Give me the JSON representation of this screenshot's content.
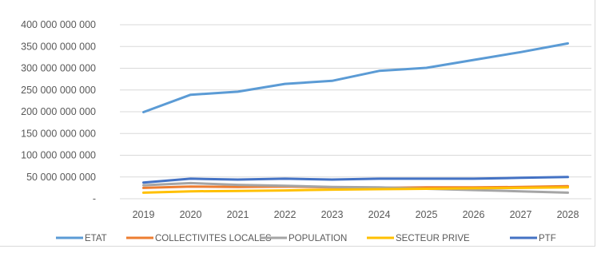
{
  "chart_data": {
    "type": "line",
    "title": "",
    "xlabel": "",
    "ylabel": "",
    "categories": [
      "2019",
      "2020",
      "2021",
      "2022",
      "2023",
      "2024",
      "2025",
      "2026",
      "2027",
      "2028"
    ],
    "ylim": [
      0,
      400000000000
    ],
    "yticks": [
      0,
      50000000000,
      100000000000,
      150000000000,
      200000000000,
      250000000000,
      300000000000,
      350000000000,
      400000000000
    ],
    "ytick_labels": [
      "-",
      "50 000 000 000",
      "100 000 000 000",
      "150 000 000 000",
      "200 000 000 000",
      "250 000 000 000",
      "300 000 000 000",
      "350 000 000 000",
      "400 000 000 000"
    ],
    "grid": "horizontal",
    "legend_position": "bottom",
    "series": [
      {
        "name": "ETAT",
        "color": "#5b9bd5",
        "values": [
          199000000000,
          239000000000,
          246000000000,
          264000000000,
          271000000000,
          294000000000,
          301000000000,
          319000000000,
          337000000000,
          357000000000
        ]
      },
      {
        "name": "COLLECTIVITES LOCALES",
        "color": "#ed7d31",
        "values": [
          25000000000,
          28000000000,
          27000000000,
          28000000000,
          26000000000,
          25000000000,
          26000000000,
          26000000000,
          27000000000,
          29000000000
        ]
      },
      {
        "name": "POPULATION",
        "color": "#a5a5a5",
        "values": [
          31000000000,
          36000000000,
          32000000000,
          30000000000,
          27000000000,
          26000000000,
          23000000000,
          20000000000,
          17000000000,
          14000000000
        ]
      },
      {
        "name": "SECTEUR PRIVE",
        "color": "#ffc000",
        "values": [
          14000000000,
          17000000000,
          18000000000,
          19000000000,
          21000000000,
          22000000000,
          23000000000,
          24000000000,
          25000000000,
          26000000000
        ]
      },
      {
        "name": "PTF",
        "color": "#4472c4",
        "values": [
          37000000000,
          46000000000,
          44000000000,
          46000000000,
          44000000000,
          46000000000,
          46000000000,
          46000000000,
          48000000000,
          50000000000
        ]
      }
    ]
  }
}
